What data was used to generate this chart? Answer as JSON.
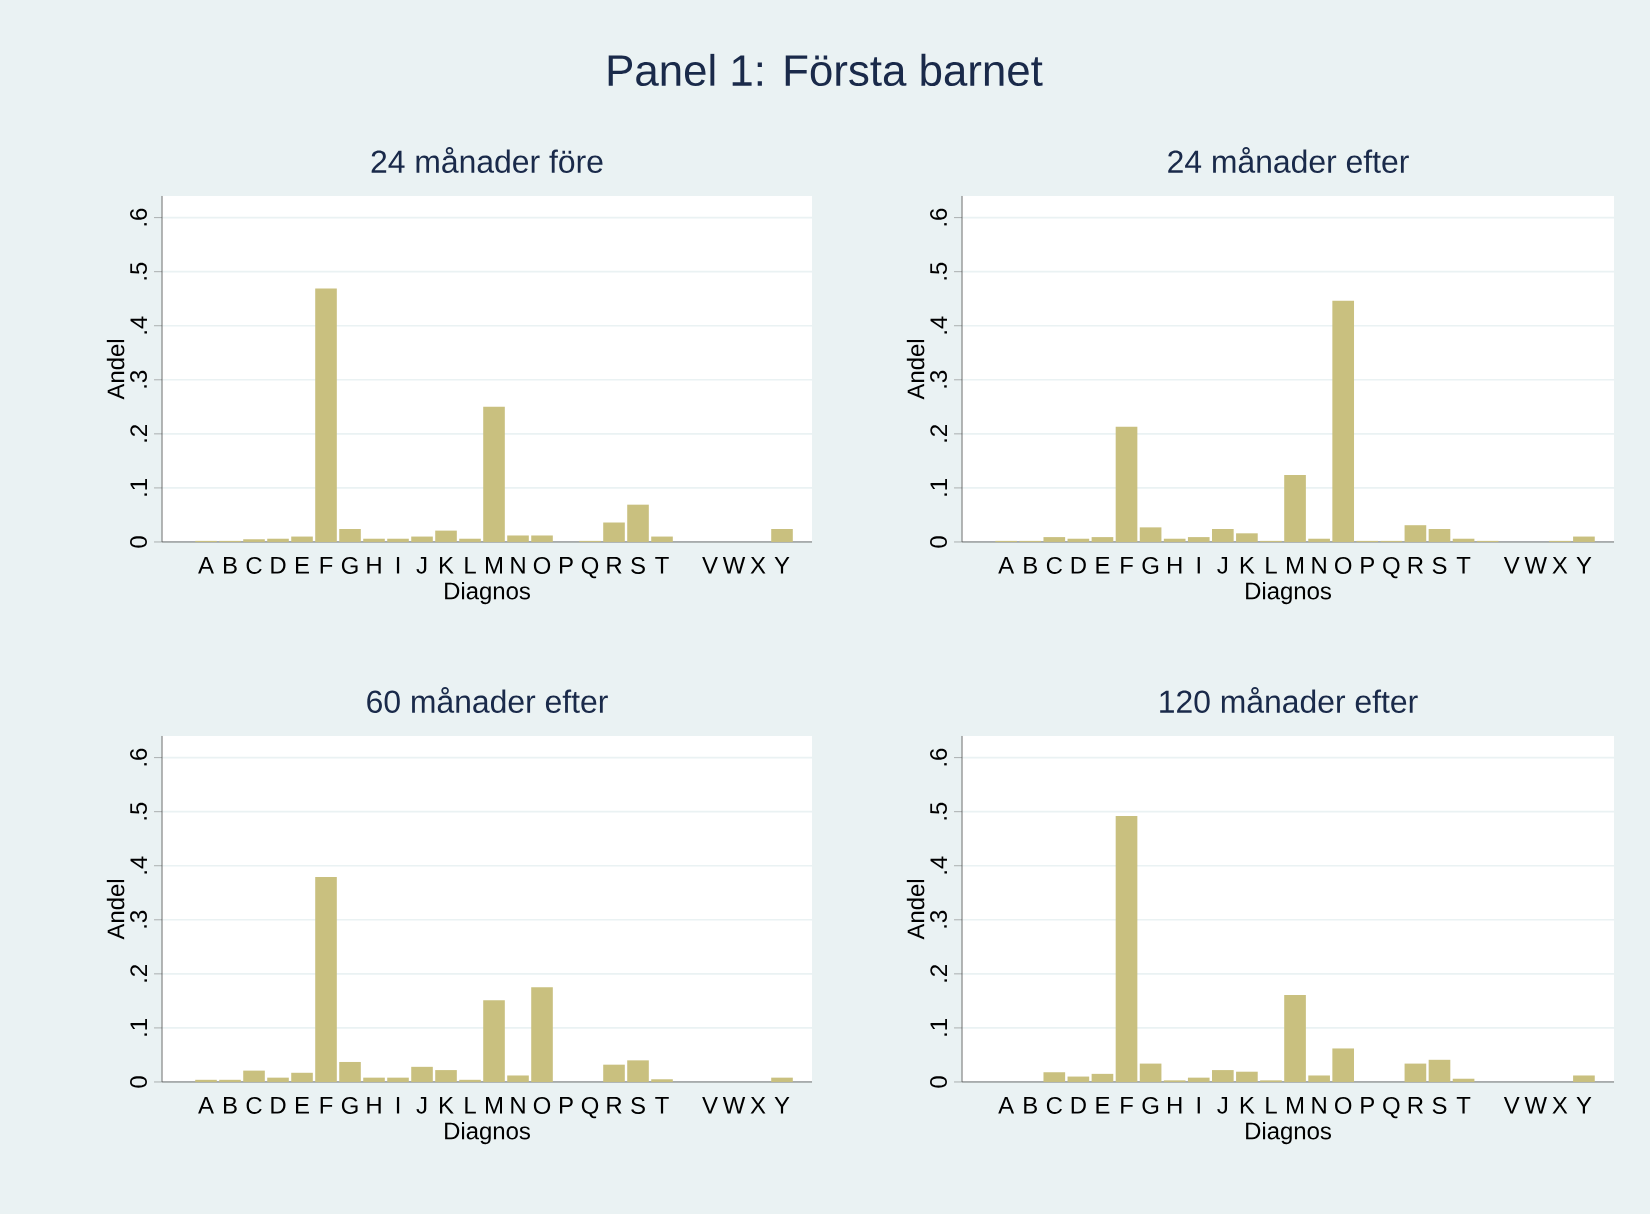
{
  "chart_data": [
    {
      "type": "bar",
      "title": "Panel 1: Första barnet",
      "subtitle": "24 månader före",
      "xlabel": "Diagnos",
      "ylabel": "Andel",
      "categories": [
        "A",
        "B",
        "C",
        "D",
        "E",
        "F",
        "G",
        "H",
        "I",
        "J",
        "K",
        "L",
        "M",
        "N",
        "O",
        "P",
        "Q",
        "R",
        "S",
        "T",
        null,
        "V",
        "W",
        "X",
        "Y"
      ],
      "values": [
        0.002,
        0.002,
        0.005,
        0.006,
        0.01,
        0.469,
        0.024,
        0.006,
        0.006,
        0.01,
        0.021,
        0.006,
        0.25,
        0.012,
        0.012,
        0,
        0.002,
        0.036,
        0.069,
        0.01,
        0,
        0,
        0,
        0,
        0.024
      ],
      "color": "#c9c07f",
      "ylim": [
        0,
        0.64
      ],
      "yticks": [
        0,
        {
          "value": 0.1,
          "label": ".1"
        },
        {
          "value": 0.2,
          "label": ".2"
        },
        {
          "value": 0.3,
          "label": ".3"
        },
        {
          "value": 0.4,
          "label": ".4"
        },
        {
          "value": 0.5,
          "label": ".5"
        },
        {
          "value": 0.6,
          "label": ".6"
        }
      ],
      "grid": "y"
    },
    {
      "type": "bar",
      "subtitle": "24 månader efter",
      "xlabel": "Diagnos",
      "ylabel": "Andel",
      "categories": [
        "A",
        "B",
        "C",
        "D",
        "E",
        "F",
        "G",
        "H",
        "I",
        "J",
        "K",
        "L",
        "M",
        "N",
        "O",
        "P",
        "Q",
        "R",
        "S",
        "T",
        null,
        "V",
        "W",
        "X",
        "Y"
      ],
      "values": [
        0.002,
        0.002,
        0.009,
        0.006,
        0.009,
        0.213,
        0.027,
        0.006,
        0.009,
        0.024,
        0.016,
        0.002,
        0.124,
        0.006,
        0.446,
        0.002,
        0.002,
        0.031,
        0.024,
        0.006,
        0.002,
        0,
        0,
        0.002,
        0.01
      ],
      "color": "#c9c07f",
      "ylim": [
        0,
        0.64
      ],
      "yticks": [
        0,
        {
          "value": 0.1,
          "label": ".1"
        },
        {
          "value": 0.2,
          "label": ".2"
        },
        {
          "value": 0.3,
          "label": ".3"
        },
        {
          "value": 0.4,
          "label": ".4"
        },
        {
          "value": 0.5,
          "label": ".5"
        },
        {
          "value": 0.6,
          "label": ".6"
        }
      ],
      "grid": "y"
    },
    {
      "type": "bar",
      "subtitle": "60 månader efter",
      "xlabel": "Diagnos",
      "ylabel": "Andel",
      "categories": [
        "A",
        "B",
        "C",
        "D",
        "E",
        "F",
        "G",
        "H",
        "I",
        "J",
        "K",
        "L",
        "M",
        "N",
        "O",
        "P",
        "Q",
        "R",
        "S",
        "T",
        null,
        "V",
        "W",
        "X",
        "Y"
      ],
      "values": [
        0.004,
        0.004,
        0.021,
        0.008,
        0.017,
        0.379,
        0.037,
        0.008,
        0.008,
        0.028,
        0.022,
        0.004,
        0.151,
        0.012,
        0.175,
        0,
        0,
        0.032,
        0.04,
        0.005,
        0,
        0,
        0,
        0,
        0.008
      ],
      "color": "#c9c07f",
      "ylim": [
        0,
        0.64
      ],
      "yticks": [
        0,
        {
          "value": 0.1,
          "label": ".1"
        },
        {
          "value": 0.2,
          "label": ".2"
        },
        {
          "value": 0.3,
          "label": ".3"
        },
        {
          "value": 0.4,
          "label": ".4"
        },
        {
          "value": 0.5,
          "label": ".5"
        },
        {
          "value": 0.6,
          "label": ".6"
        }
      ],
      "grid": "y"
    },
    {
      "type": "bar",
      "subtitle": "120 månader efter",
      "xlabel": "Diagnos",
      "ylabel": "Andel",
      "categories": [
        "A",
        "B",
        "C",
        "D",
        "E",
        "F",
        "G",
        "H",
        "I",
        "J",
        "K",
        "L",
        "M",
        "N",
        "O",
        "P",
        "Q",
        "R",
        "S",
        "T",
        null,
        "V",
        "W",
        "X",
        "Y"
      ],
      "values": [
        0,
        0,
        0.018,
        0.01,
        0.015,
        0.492,
        0.034,
        0.003,
        0.008,
        0.022,
        0.019,
        0.003,
        0.161,
        0.012,
        0.062,
        0,
        0,
        0.034,
        0.041,
        0.006,
        0,
        0,
        0,
        0,
        0.012
      ],
      "color": "#c9c07f",
      "ylim": [
        0,
        0.64
      ],
      "yticks": [
        0,
        {
          "value": 0.1,
          "label": ".1"
        },
        {
          "value": 0.2,
          "label": ".2"
        },
        {
          "value": 0.3,
          "label": ".3"
        },
        {
          "value": 0.4,
          "label": ".4"
        },
        {
          "value": 0.5,
          "label": ".5"
        },
        {
          "value": 0.6,
          "label": ".6"
        }
      ],
      "grid": "y"
    }
  ]
}
